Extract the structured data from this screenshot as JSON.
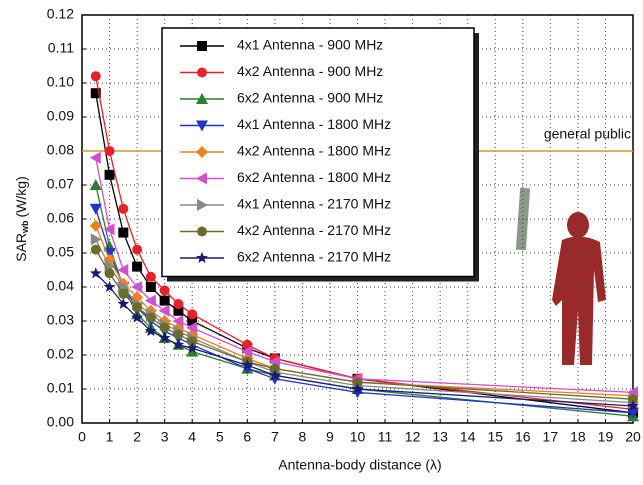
{
  "chart_data": {
    "type": "line",
    "x_label": "Antenna-body distance (λ)",
    "y_label": {
      "main": "SAR",
      "sub": "wb",
      "unit": "(W/kg)"
    },
    "x": [
      0.5,
      1,
      1.5,
      2,
      2.5,
      3,
      3.5,
      4,
      6,
      7,
      10,
      20
    ],
    "xlim": [
      0,
      20
    ],
    "xticks": [
      0,
      1,
      2,
      3,
      4,
      5,
      6,
      7,
      8,
      9,
      10,
      11,
      12,
      13,
      14,
      15,
      16,
      17,
      18,
      19,
      20
    ],
    "ylim": [
      0,
      0.12
    ],
    "yticks": [
      {
        "value": 0,
        "label": "0.00"
      },
      {
        "value": 0.01,
        "label": "0.01"
      },
      {
        "value": 0.02,
        "label": "0.02"
      },
      {
        "value": 0.03,
        "label": "0.03"
      },
      {
        "value": 0.04,
        "label": "0.04"
      },
      {
        "value": 0.05,
        "label": "0.05"
      },
      {
        "value": 0.06,
        "label": "0.06"
      },
      {
        "value": 0.07,
        "label": "0.07"
      },
      {
        "value": 0.08,
        "label": "0.08"
      },
      {
        "value": 0.09,
        "label": "0.09"
      },
      {
        "value": 0.1,
        "label": "0.10"
      },
      {
        "value": 0.11,
        "label": "0.11"
      },
      {
        "value": 0.12,
        "label": "0.12"
      }
    ],
    "grid": true,
    "legend_loc": "upper center",
    "reference_line": {
      "value": 0.08,
      "label": "general public",
      "color": "#d8962e"
    },
    "series": [
      {
        "name": "4x1 Antenna - 900 MHz",
        "color": "#000000",
        "marker": "square",
        "values": [
          0.097,
          0.073,
          0.056,
          0.046,
          0.04,
          0.036,
          0.033,
          0.03,
          0.022,
          0.019,
          0.013,
          0.003
        ]
      },
      {
        "name": "4x2 Antenna - 900 MHz",
        "color": "#e8202a",
        "marker": "circle",
        "values": [
          0.102,
          0.08,
          0.063,
          0.051,
          0.043,
          0.039,
          0.035,
          0.032,
          0.023,
          0.019,
          0.013,
          0.004
        ]
      },
      {
        "name": "6x2 Antenna - 900 MHz",
        "color": "#2e7d32",
        "marker": "triangle-up",
        "values": [
          0.07,
          0.052,
          0.04,
          0.032,
          0.028,
          0.025,
          0.023,
          0.021,
          0.016,
          0.014,
          0.01,
          0.002
        ]
      },
      {
        "name": "4x1 Antenna - 1800 MHz",
        "color": "#2233cc",
        "marker": "triangle-down",
        "values": [
          0.063,
          0.05,
          0.04,
          0.034,
          0.03,
          0.027,
          0.025,
          0.023,
          0.016,
          0.013,
          0.009,
          0.003
        ]
      },
      {
        "name": "4x2 Antenna - 1800 MHz",
        "color": "#f08020",
        "marker": "diamond",
        "values": [
          0.058,
          0.048,
          0.041,
          0.037,
          0.033,
          0.03,
          0.028,
          0.026,
          0.019,
          0.016,
          0.012,
          0.008
        ]
      },
      {
        "name": "6x2 Antenna - 1800 MHz",
        "color": "#d050d0",
        "marker": "triangle-left",
        "values": [
          0.078,
          0.057,
          0.045,
          0.04,
          0.036,
          0.033,
          0.03,
          0.028,
          0.021,
          0.018,
          0.013,
          0.009
        ]
      },
      {
        "name": "4x1 Antenna - 2170 MHz",
        "color": "#888888",
        "marker": "triangle-right",
        "values": [
          0.054,
          0.046,
          0.04,
          0.035,
          0.032,
          0.029,
          0.027,
          0.025,
          0.018,
          0.015,
          0.011,
          0.006
        ]
      },
      {
        "name": "4x2 Antenna - 2170 MHz",
        "color": "#6b6b2a",
        "marker": "circle",
        "values": [
          0.051,
          0.044,
          0.038,
          0.034,
          0.031,
          0.028,
          0.026,
          0.024,
          0.018,
          0.016,
          0.012,
          0.007
        ]
      },
      {
        "name": "6x2 Antenna - 2170 MHz",
        "color": "#1a1a6e",
        "marker": "star",
        "values": [
          0.044,
          0.04,
          0.035,
          0.031,
          0.027,
          0.025,
          0.023,
          0.022,
          0.017,
          0.014,
          0.01,
          0.005
        ]
      }
    ]
  }
}
